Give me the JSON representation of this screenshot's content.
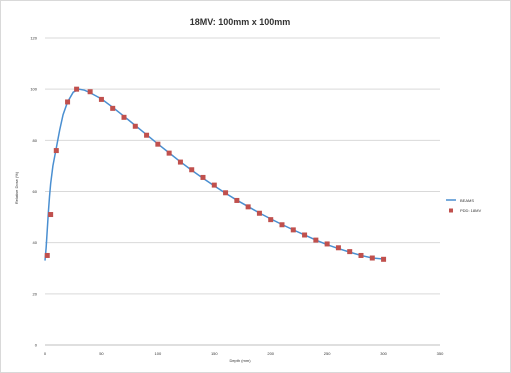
{
  "chart_data": {
    "type": "line",
    "title": "18MV: 100mm x 100mm",
    "xlabel": "Depth (mm)",
    "ylabel": "Relative Dose (%)",
    "xlim": [
      0,
      350
    ],
    "ylim": [
      0,
      120
    ],
    "x_ticks": [
      0,
      50,
      100,
      150,
      200,
      250,
      300,
      350
    ],
    "y_ticks": [
      0,
      20,
      40,
      60,
      80,
      100,
      120
    ],
    "grid": "horizontal",
    "legend_position": "right",
    "series": [
      {
        "name": "BEAMS",
        "style": "line",
        "color": "#4a8fd1",
        "x": [
          0,
          1,
          2,
          3,
          4,
          5,
          7,
          10,
          13,
          16,
          20,
          25,
          30,
          35,
          40,
          50,
          60,
          70,
          80,
          90,
          100,
          110,
          120,
          130,
          140,
          150,
          160,
          170,
          180,
          190,
          200,
          210,
          220,
          230,
          240,
          250,
          260,
          270,
          280,
          290,
          300
        ],
        "y": [
          33,
          38,
          45,
          52,
          58,
          63,
          70,
          77,
          84,
          90,
          95,
          98.8,
          100,
          99.6,
          98.6,
          96.2,
          92.9,
          89.4,
          85.8,
          82.2,
          78.6,
          75.1,
          71.6,
          68.3,
          65.2,
          62.2,
          59.3,
          56.6,
          54.1,
          51.6,
          49.3,
          47.1,
          45,
          43,
          41,
          39.2,
          37.7,
          36.3,
          35,
          34,
          33.6
        ]
      },
      {
        "name": "PDD: 18MV",
        "style": "markers",
        "color": "#c0504d",
        "x": [
          2,
          5,
          10,
          20,
          28,
          40,
          50,
          60,
          70,
          80,
          90,
          100,
          110,
          120,
          130,
          140,
          150,
          160,
          170,
          180,
          190,
          200,
          210,
          220,
          230,
          240,
          250,
          260,
          270,
          280,
          290,
          300
        ],
        "y": [
          35,
          51,
          76,
          95,
          100,
          99,
          96,
          92.5,
          89,
          85.5,
          82,
          78.5,
          75,
          71.5,
          68.5,
          65.5,
          62.5,
          59.5,
          56.5,
          54,
          51.5,
          49,
          47,
          45,
          43,
          41,
          39.5,
          38,
          36.5,
          35,
          34,
          33.5
        ]
      }
    ]
  }
}
